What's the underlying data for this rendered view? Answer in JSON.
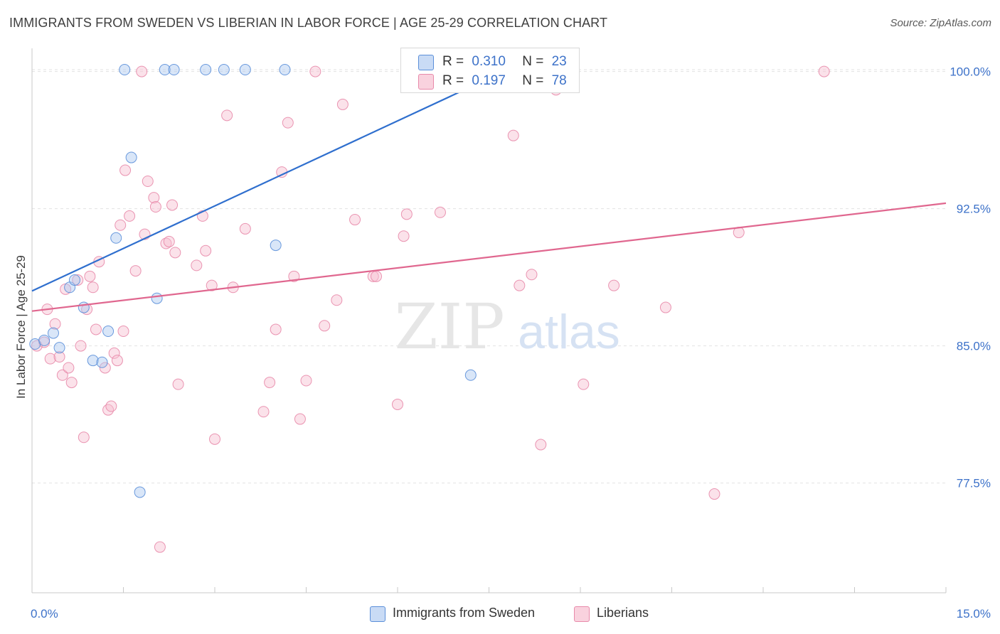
{
  "title": "IMMIGRANTS FROM SWEDEN VS LIBERIAN IN LABOR FORCE | AGE 25-29 CORRELATION CHART",
  "source": "Source: ZipAtlas.com",
  "watermark": {
    "zip": "ZIP",
    "atlas": "atlas"
  },
  "legend": {
    "rows": [
      {
        "r_label": "R =",
        "r_value": "0.310",
        "n_label": "N =",
        "n_value": "23"
      },
      {
        "r_label": "R =",
        "r_value": "0.197",
        "n_label": "N =",
        "n_value": "78"
      }
    ]
  },
  "bottom_legend": [
    "Immigrants from Sweden",
    "Liberians"
  ],
  "colors": {
    "sweden_fill": "#aac8f0",
    "sweden_stroke": "#5b8fd9",
    "sweden_line": "#2f6fce",
    "liberian_fill": "#f7bfd0",
    "liberian_stroke": "#e88aaa",
    "liberian_line": "#e0678f",
    "tick_label": "#3d72c9",
    "grid": "#e3e3e3",
    "axis": "#c8c8c8"
  },
  "chart_data": {
    "type": "scatter",
    "title": "IMMIGRANTS FROM SWEDEN VS LIBERIAN IN LABOR FORCE | AGE 25-29 CORRELATION CHART",
    "xlabel": "",
    "ylabel": "In Labor Force | Age 25-29",
    "xlim": [
      0,
      15
    ],
    "ylim": [
      71.5,
      101.5
    ],
    "x_tick_labels": [
      "0.0%",
      "15.0%"
    ],
    "y_ticks": [
      77.5,
      85.0,
      92.5,
      100.0
    ],
    "y_tick_labels": [
      "77.5%",
      "85.0%",
      "92.5%",
      "100.0%"
    ],
    "grid": true,
    "legend_position": "top-center",
    "series": [
      {
        "name": "Immigrants from Sweden",
        "r": 0.31,
        "n": 23,
        "trend": {
          "x": [
            0,
            8.0
          ],
          "y": [
            88.0,
            100.4
          ]
        },
        "points": [
          {
            "x": 0.05,
            "y": 85.1
          },
          {
            "x": 0.2,
            "y": 85.3
          },
          {
            "x": 0.35,
            "y": 85.7
          },
          {
            "x": 0.45,
            "y": 84.9
          },
          {
            "x": 0.62,
            "y": 88.2
          },
          {
            "x": 0.7,
            "y": 88.6
          },
          {
            "x": 0.85,
            "y": 87.1
          },
          {
            "x": 1.0,
            "y": 84.2
          },
          {
            "x": 1.15,
            "y": 84.1
          },
          {
            "x": 1.25,
            "y": 85.8
          },
          {
            "x": 1.38,
            "y": 90.9
          },
          {
            "x": 1.52,
            "y": 100.1
          },
          {
            "x": 1.63,
            "y": 95.3
          },
          {
            "x": 1.77,
            "y": 77.0
          },
          {
            "x": 2.05,
            "y": 87.6
          },
          {
            "x": 2.18,
            "y": 100.1
          },
          {
            "x": 2.33,
            "y": 100.1
          },
          {
            "x": 2.85,
            "y": 100.1
          },
          {
            "x": 3.15,
            "y": 100.1
          },
          {
            "x": 3.5,
            "y": 100.1
          },
          {
            "x": 4.0,
            "y": 90.5
          },
          {
            "x": 4.15,
            "y": 100.1
          },
          {
            "x": 7.2,
            "y": 83.4
          }
        ]
      },
      {
        "name": "Liberians",
        "r": 0.197,
        "n": 78,
        "trend": {
          "x": [
            0,
            15.0
          ],
          "y": [
            86.9,
            92.8
          ]
        },
        "points": [
          {
            "x": 0.08,
            "y": 85.0
          },
          {
            "x": 0.2,
            "y": 85.2
          },
          {
            "x": 0.25,
            "y": 87.0
          },
          {
            "x": 0.3,
            "y": 84.3
          },
          {
            "x": 0.38,
            "y": 86.2
          },
          {
            "x": 0.45,
            "y": 84.4
          },
          {
            "x": 0.5,
            "y": 83.4
          },
          {
            "x": 0.55,
            "y": 88.1
          },
          {
            "x": 0.6,
            "y": 83.8
          },
          {
            "x": 0.65,
            "y": 83.0
          },
          {
            "x": 0.75,
            "y": 88.6
          },
          {
            "x": 0.8,
            "y": 85.0
          },
          {
            "x": 0.85,
            "y": 80.0
          },
          {
            "x": 0.9,
            "y": 87.0
          },
          {
            "x": 0.95,
            "y": 88.8
          },
          {
            "x": 1.0,
            "y": 88.2
          },
          {
            "x": 1.05,
            "y": 85.9
          },
          {
            "x": 1.1,
            "y": 89.6
          },
          {
            "x": 1.2,
            "y": 83.8
          },
          {
            "x": 1.25,
            "y": 81.5
          },
          {
            "x": 1.3,
            "y": 81.7
          },
          {
            "x": 1.35,
            "y": 84.6
          },
          {
            "x": 1.4,
            "y": 84.2
          },
          {
            "x": 1.45,
            "y": 91.6
          },
          {
            "x": 1.5,
            "y": 85.8
          },
          {
            "x": 1.53,
            "y": 94.6
          },
          {
            "x": 1.6,
            "y": 92.1
          },
          {
            "x": 1.7,
            "y": 89.1
          },
          {
            "x": 1.8,
            "y": 100.0
          },
          {
            "x": 1.85,
            "y": 91.1
          },
          {
            "x": 1.9,
            "y": 94.0
          },
          {
            "x": 2.0,
            "y": 93.1
          },
          {
            "x": 2.03,
            "y": 92.6
          },
          {
            "x": 2.1,
            "y": 74.0
          },
          {
            "x": 2.2,
            "y": 90.6
          },
          {
            "x": 2.25,
            "y": 90.7
          },
          {
            "x": 2.3,
            "y": 92.7
          },
          {
            "x": 2.35,
            "y": 90.1
          },
          {
            "x": 2.4,
            "y": 82.9
          },
          {
            "x": 2.8,
            "y": 92.1
          },
          {
            "x": 2.85,
            "y": 90.2
          },
          {
            "x": 2.95,
            "y": 88.3
          },
          {
            "x": 3.0,
            "y": 79.9
          },
          {
            "x": 2.7,
            "y": 89.4
          },
          {
            "x": 3.2,
            "y": 97.6
          },
          {
            "x": 3.3,
            "y": 88.2
          },
          {
            "x": 3.5,
            "y": 91.4
          },
          {
            "x": 3.8,
            "y": 81.4
          },
          {
            "x": 3.9,
            "y": 83.0
          },
          {
            "x": 4.0,
            "y": 85.9
          },
          {
            "x": 4.1,
            "y": 94.5
          },
          {
            "x": 4.2,
            "y": 97.2
          },
          {
            "x": 4.3,
            "y": 88.8
          },
          {
            "x": 4.4,
            "y": 81.0
          },
          {
            "x": 4.5,
            "y": 83.1
          },
          {
            "x": 4.65,
            "y": 100.0
          },
          {
            "x": 4.8,
            "y": 86.1
          },
          {
            "x": 5.0,
            "y": 87.5
          },
          {
            "x": 5.1,
            "y": 98.2
          },
          {
            "x": 5.3,
            "y": 91.9
          },
          {
            "x": 5.6,
            "y": 88.8
          },
          {
            "x": 5.65,
            "y": 88.8
          },
          {
            "x": 6.0,
            "y": 81.8
          },
          {
            "x": 6.1,
            "y": 91.0
          },
          {
            "x": 6.15,
            "y": 92.2
          },
          {
            "x": 6.7,
            "y": 92.3
          },
          {
            "x": 7.5,
            "y": 100.0
          },
          {
            "x": 7.9,
            "y": 96.5
          },
          {
            "x": 8.0,
            "y": 88.3
          },
          {
            "x": 8.2,
            "y": 88.9
          },
          {
            "x": 8.35,
            "y": 79.6
          },
          {
            "x": 8.6,
            "y": 99.0
          },
          {
            "x": 9.05,
            "y": 82.9
          },
          {
            "x": 9.55,
            "y": 88.3
          },
          {
            "x": 10.4,
            "y": 87.1
          },
          {
            "x": 11.2,
            "y": 76.9
          },
          {
            "x": 11.6,
            "y": 91.2
          },
          {
            "x": 13.0,
            "y": 100.0
          }
        ]
      }
    ]
  }
}
